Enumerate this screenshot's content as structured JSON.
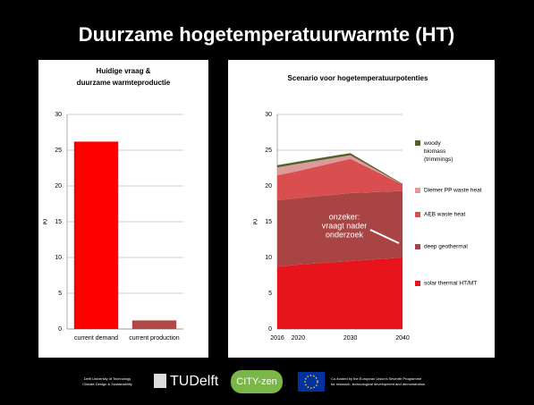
{
  "title": "Duurzame hogetemperatuurwarmte (HT)",
  "chart_data": [
    {
      "type": "bar",
      "title": [
        "Huidige vraag &",
        "duurzame warmteproductie"
      ],
      "y_label": "PJ",
      "categories": [
        "current demand",
        "current production"
      ],
      "values": [
        26.2,
        1.2
      ],
      "colors": [
        "#ff0000",
        "#b04848"
      ],
      "ylim": [
        0,
        30
      ],
      "yticks": [
        0,
        5,
        10,
        15,
        20,
        25,
        30
      ],
      "grid": true
    },
    {
      "type": "area",
      "title": "Scenario voor hogetemperatuurpotenties",
      "y_label": "PJ",
      "x": [
        2016,
        2020,
        2030,
        2040
      ],
      "xlim": [
        2016,
        2040
      ],
      "xticks": [
        2016,
        2020,
        2030,
        2040
      ],
      "ylim": [
        0,
        30
      ],
      "yticks": [
        0,
        5,
        10,
        15,
        20,
        25,
        30
      ],
      "grid": true,
      "series": [
        {
          "name": "solar thermal HT/MT",
          "color": "#e8141b",
          "values": [
            8.7,
            9.0,
            9.5,
            10.0
          ]
        },
        {
          "name": "deep geothermal",
          "color": "#a94444",
          "values": [
            9.3,
            9.3,
            9.5,
            9.3
          ]
        },
        {
          "name": "AEB waste heat",
          "color": "#d94f4f",
          "values": [
            3.5,
            3.8,
            4.8,
            0.9
          ]
        },
        {
          "name": "Diemer PP waste heat",
          "color": "#dc9a9a",
          "values": [
            1.1,
            1.0,
            0.5,
            0
          ]
        },
        {
          "name": "woody biomass (trimmings)",
          "color": "#4f6228",
          "values": [
            0.3,
            0.3,
            0.3,
            0.1
          ]
        }
      ],
      "annotation": [
        "onzeker:",
        "vraagt nader",
        "onderzoek"
      ]
    }
  ],
  "footer": {
    "university": [
      "Delft University of Technology",
      "Climate Design & Sustainability"
    ],
    "logo1": "TUDelft",
    "logo2": "CITY-zen",
    "funding": [
      "Co-funded by the European Union's Seventh Programme",
      "for research, technological development and demonstration"
    ]
  }
}
